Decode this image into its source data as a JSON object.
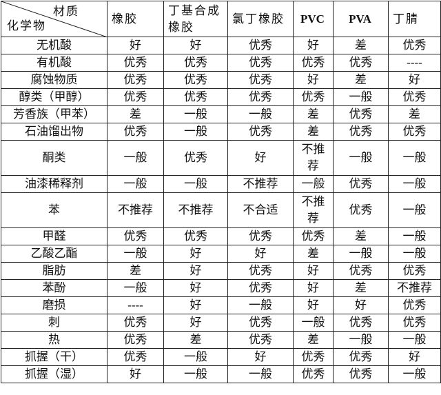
{
  "table": {
    "corner_top": "材质",
    "corner_bottom": "化学物",
    "columns": [
      "橡胶",
      "丁基合成橡胶",
      "氯丁橡胶",
      "PVC",
      "PVA",
      "丁腈"
    ],
    "rows": [
      {
        "label": "无机酸",
        "values": [
          "好",
          "好",
          "优秀",
          "好",
          "差",
          "优秀"
        ]
      },
      {
        "label": "有机酸",
        "values": [
          "优秀",
          "优秀",
          "优秀",
          "优秀",
          "优秀",
          "----"
        ]
      },
      {
        "label": "腐蚀物质",
        "values": [
          "优秀",
          "优秀",
          "优秀",
          "好",
          "差",
          "好"
        ]
      },
      {
        "label": "醇类（甲醇）",
        "values": [
          "优秀",
          "优秀",
          "优秀",
          "优秀",
          "一般",
          "优秀"
        ]
      },
      {
        "label": "芳香族（甲苯）",
        "values": [
          "差",
          "一般",
          "一般",
          "差",
          "优秀",
          "差"
        ]
      },
      {
        "label": "石油馏出物",
        "values": [
          "优秀",
          "一般",
          "优秀",
          "差",
          "优秀",
          "优秀"
        ]
      },
      {
        "label": "酮类",
        "values": [
          "一般",
          "优秀",
          "好",
          "不推荐",
          "一般",
          "一般"
        ]
      },
      {
        "label": "油漆稀释剂",
        "values": [
          "一般",
          "一般",
          "不推荐",
          "一般",
          "优秀",
          "一般"
        ]
      },
      {
        "label": "苯",
        "values": [
          "不推荐",
          "不推荐",
          "不合适",
          "不推荐",
          "优秀",
          "一般"
        ]
      },
      {
        "label": "甲醛",
        "values": [
          "优秀",
          "优秀",
          "优秀",
          "优秀",
          "差",
          "一般"
        ]
      },
      {
        "label": "乙酸乙酯",
        "values": [
          "一般",
          "好",
          "好",
          "差",
          "一般",
          "一般"
        ]
      },
      {
        "label": "脂肪",
        "values": [
          "差",
          "好",
          "优秀",
          "好",
          "优秀",
          "优秀"
        ]
      },
      {
        "label": "苯酚",
        "values": [
          "一般",
          "好",
          "优秀",
          "好",
          "差",
          "不推荐"
        ]
      },
      {
        "label": "磨损",
        "values": [
          "----",
          "好",
          "一般",
          "好",
          "好",
          "优秀"
        ]
      },
      {
        "label": "刺",
        "values": [
          "优秀",
          "好",
          "优秀",
          "一般",
          "优秀",
          "优秀"
        ]
      },
      {
        "label": "热",
        "values": [
          "优秀",
          "差",
          "优秀",
          "差",
          "一般",
          "一般"
        ]
      },
      {
        "label": "抓握（干）",
        "values": [
          "优秀",
          "一般",
          "好",
          "优秀",
          "优秀",
          "好"
        ]
      },
      {
        "label": "抓握（湿）",
        "values": [
          "好",
          "一般",
          "一般",
          "优秀",
          "优秀",
          "一般"
        ]
      }
    ]
  }
}
